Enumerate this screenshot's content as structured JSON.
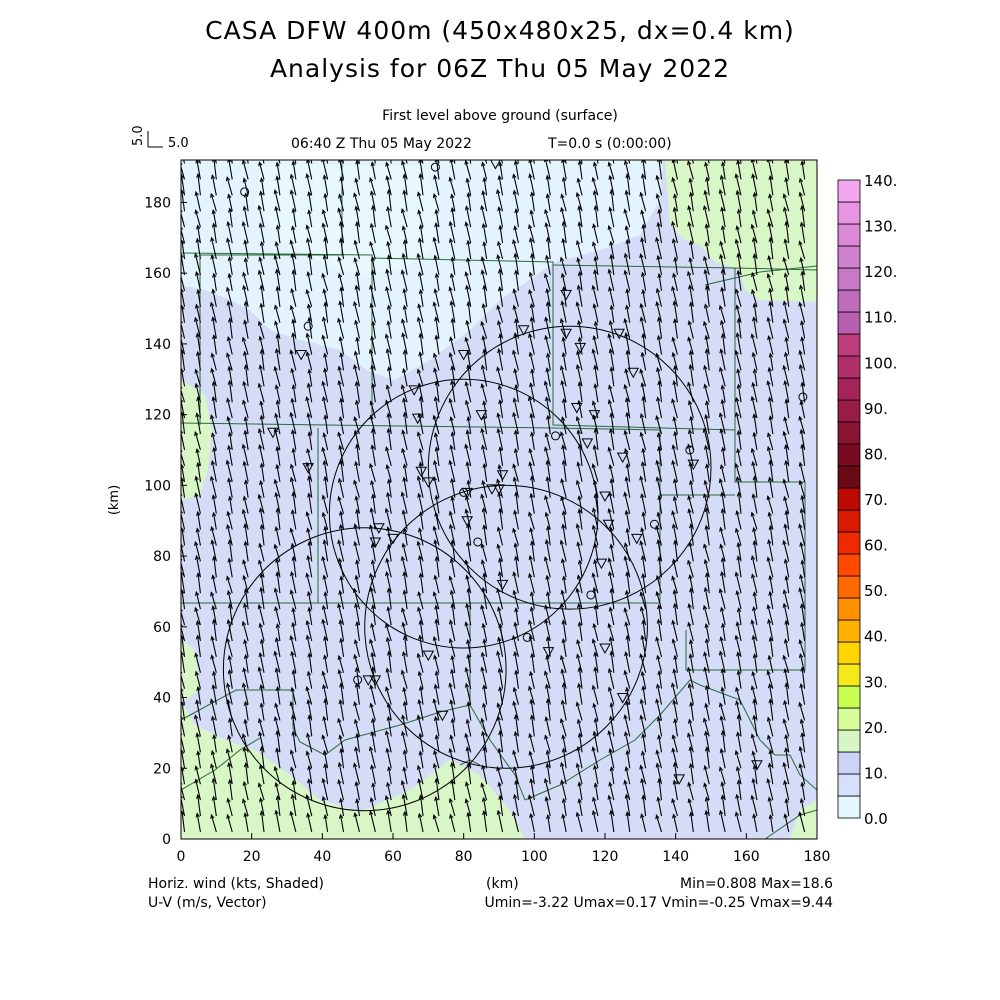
{
  "header": {
    "title_line1": "CASA DFW 400m (450x480x25, dx=0.4 km)",
    "title_line2": "Analysis for 06Z Thu 05 May 2022",
    "level": "First level above ground (surface)",
    "valid_time": "06:40 Z Thu 05 May 2022",
    "model_time": "T=0.0 s (0:00:00)",
    "ref_vector_vertical": "5.0",
    "ref_vector_horizontal": "5.0"
  },
  "footer": {
    "field_label": "Horiz. wind (kts, Shaded)",
    "vector_label": "U-V (m/s, Vector)",
    "xunit": "(km)",
    "minmax": "Min=0.808 Max=18.6",
    "uv_stats": "Umin=-3.22 Umax=0.17 Vmin=-0.25 Vmax=9.44"
  },
  "chart_data": {
    "type": "heatmap",
    "title": "Horiz. wind (kts, Shaded)",
    "xlabel": "(km)",
    "ylabel": "(km)",
    "xlim": [
      0,
      180
    ],
    "ylim": [
      0,
      192
    ],
    "xticks": [
      0,
      20,
      40,
      60,
      80,
      100,
      120,
      140,
      160,
      180
    ],
    "yticks": [
      0,
      20,
      40,
      60,
      80,
      100,
      120,
      140,
      160,
      180
    ],
    "field_min": 0.808,
    "field_max": 18.6,
    "wind_stats": {
      "umin": -3.22,
      "umax": 0.17,
      "vmin": -0.25,
      "vmax": 9.44
    },
    "colorbar": {
      "levels": [
        0,
        5,
        10,
        15,
        20,
        25,
        30,
        35,
        40,
        45,
        50,
        55,
        60,
        65,
        70,
        75,
        80,
        85,
        90,
        95,
        100,
        105,
        110,
        115,
        120,
        125,
        130,
        135,
        140
      ],
      "labels": [
        "0.0",
        "10.",
        "20.",
        "30.",
        "40.",
        "50.",
        "60.",
        "70.",
        "80.",
        "90.",
        "100.",
        "110.",
        "120.",
        "130.",
        "140."
      ],
      "colors": [
        "#e4f6ff",
        "#d6e0fa",
        "#ccd4f5",
        "#d6f6c6",
        "#d6ff9a",
        "#c8ff50",
        "#f4ea1a",
        "#ffd400",
        "#ffb000",
        "#ff9000",
        "#ff6a00",
        "#ff4a00",
        "#ee2a00",
        "#d81a00",
        "#bc0a00",
        "#6a0a14",
        "#7a0a22",
        "#8a1432",
        "#981c46",
        "#a42458",
        "#b0306a",
        "#bc3c7c",
        "#b860b0",
        "#c06cbc",
        "#c878c6",
        "#d082d0",
        "#dc8ad8",
        "#e894e2",
        "#f2a6f0"
      ]
    },
    "shading_regions": [
      {
        "level": "0-5 kts",
        "area": "upper-left/center north",
        "color": "#e4f6ff"
      },
      {
        "level": "5-10 kts",
        "area": "most of domain",
        "color": "#d6e0fa"
      },
      {
        "level": "15-20 kts",
        "area": "top-right corner, left edge, bottom-left",
        "color": "#d6f6c6"
      }
    ],
    "wind_field": {
      "mean_u_ms": -1.0,
      "mean_v_ms": 5.0,
      "direction": "southerly"
    },
    "radar_rings": [
      {
        "cx_km": 110,
        "cy_km": 105,
        "r_km": 40
      },
      {
        "cx_km": 80,
        "cy_km": 92,
        "r_km": 38
      },
      {
        "cx_km": 92,
        "cy_km": 60,
        "r_km": 40
      },
      {
        "cx_km": 52,
        "cy_km": 48,
        "r_km": 40
      }
    ],
    "stations": [
      {
        "x": 18,
        "y": 183,
        "type": "circle"
      },
      {
        "x": 72,
        "y": 190,
        "type": "circle"
      },
      {
        "x": 89,
        "y": 191,
        "type": "triangle"
      },
      {
        "x": 36,
        "y": 145,
        "type": "circle"
      },
      {
        "x": 34,
        "y": 137,
        "type": "triangle"
      },
      {
        "x": 26,
        "y": 115,
        "type": "triangle"
      },
      {
        "x": 36,
        "y": 105,
        "type": "triangle"
      },
      {
        "x": 66,
        "y": 127,
        "type": "triangle"
      },
      {
        "x": 67,
        "y": 119,
        "type": "triangle"
      },
      {
        "x": 80,
        "y": 137,
        "type": "triangle"
      },
      {
        "x": 85,
        "y": 120,
        "type": "triangle"
      },
      {
        "x": 97,
        "y": 144,
        "type": "triangle"
      },
      {
        "x": 109,
        "y": 154,
        "type": "triangle"
      },
      {
        "x": 109,
        "y": 143,
        "type": "triangle"
      },
      {
        "x": 113,
        "y": 139,
        "type": "triangle"
      },
      {
        "x": 112,
        "y": 122,
        "type": "triangle"
      },
      {
        "x": 117,
        "y": 120,
        "type": "triangle"
      },
      {
        "x": 124,
        "y": 143,
        "type": "triangle"
      },
      {
        "x": 128,
        "y": 132,
        "type": "triangle"
      },
      {
        "x": 106,
        "y": 114,
        "type": "circle"
      },
      {
        "x": 115,
        "y": 112,
        "type": "triangle"
      },
      {
        "x": 125,
        "y": 108,
        "type": "triangle"
      },
      {
        "x": 144,
        "y": 110,
        "type": "circle"
      },
      {
        "x": 145,
        "y": 106,
        "type": "triangle"
      },
      {
        "x": 176,
        "y": 125,
        "type": "circle"
      },
      {
        "x": 68,
        "y": 104,
        "type": "triangle"
      },
      {
        "x": 70,
        "y": 101,
        "type": "triangle"
      },
      {
        "x": 80,
        "y": 98,
        "type": "circle"
      },
      {
        "x": 81,
        "y": 98,
        "type": "triangle"
      },
      {
        "x": 91,
        "y": 103,
        "type": "triangle"
      },
      {
        "x": 90,
        "y": 99,
        "type": "triangle"
      },
      {
        "x": 88,
        "y": 99,
        "type": "triangle"
      },
      {
        "x": 81,
        "y": 90,
        "type": "triangle"
      },
      {
        "x": 84,
        "y": 84,
        "type": "circle"
      },
      {
        "x": 120,
        "y": 97,
        "type": "triangle"
      },
      {
        "x": 121,
        "y": 89,
        "type": "triangle"
      },
      {
        "x": 119,
        "y": 78,
        "type": "triangle"
      },
      {
        "x": 129,
        "y": 85,
        "type": "triangle"
      },
      {
        "x": 134,
        "y": 89,
        "type": "circle"
      },
      {
        "x": 56,
        "y": 88,
        "type": "triangle"
      },
      {
        "x": 55,
        "y": 84,
        "type": "triangle"
      },
      {
        "x": 60,
        "y": 85,
        "type": "triangle"
      },
      {
        "x": 91,
        "y": 72,
        "type": "triangle"
      },
      {
        "x": 116,
        "y": 69,
        "type": "circle"
      },
      {
        "x": 98,
        "y": 57,
        "type": "circle"
      },
      {
        "x": 104,
        "y": 53,
        "type": "triangle"
      },
      {
        "x": 120,
        "y": 54,
        "type": "triangle"
      },
      {
        "x": 70,
        "y": 52,
        "type": "triangle"
      },
      {
        "x": 50,
        "y": 45,
        "type": "circle"
      },
      {
        "x": 53,
        "y": 45,
        "type": "triangle"
      },
      {
        "x": 55,
        "y": 45,
        "type": "triangle"
      },
      {
        "x": 125,
        "y": 40,
        "type": "triangle"
      },
      {
        "x": 74,
        "y": 35,
        "type": "triangle"
      },
      {
        "x": 141,
        "y": 17,
        "type": "triangle"
      },
      {
        "x": 163,
        "y": 21,
        "type": "triangle"
      }
    ]
  }
}
